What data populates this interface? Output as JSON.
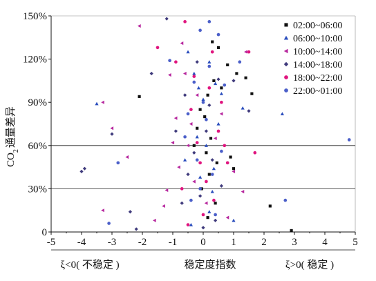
{
  "chart_data": {
    "type": "scatter",
    "title": "",
    "ylabel": "CO",
    "ylabel_sub": "2",
    "ylabel_rest": "通量差异",
    "xlabel_center": "稳定度指数",
    "xlabel_left": "ξ<0( 不稳定 )",
    "xlabel_right": "ξ>0( 稳定 )",
    "xlim": [
      -5,
      5
    ],
    "ylim": [
      0,
      150
    ],
    "x_ticks": [
      "-5",
      "-4",
      "-3",
      "-2",
      "-1",
      "0",
      "1",
      "2",
      "3",
      "4",
      "5"
    ],
    "y_ticks": [
      "0",
      "30%",
      "60%",
      "90%",
      "120%",
      "150%"
    ],
    "grid": "horizontal at 30% and 60%",
    "legend_position": "top-right",
    "series": [
      {
        "name": "02:00~06:00",
        "marker": "square",
        "color": "#111111",
        "points": [
          [
            -2.1,
            94
          ],
          [
            -0.3,
            60
          ],
          [
            0.3,
            132
          ],
          [
            0.5,
            128
          ],
          [
            0.6,
            100
          ],
          [
            0.8,
            116
          ],
          [
            0.9,
            52
          ],
          [
            1.0,
            44
          ],
          [
            1.1,
            110
          ],
          [
            1.4,
            107
          ],
          [
            1.6,
            96
          ],
          [
            2.2,
            18
          ],
          [
            2.9,
            1
          ],
          [
            -0.05,
            30
          ],
          [
            0.05,
            80
          ],
          [
            0.1,
            55
          ],
          [
            0.15,
            95
          ],
          [
            -0.1,
            85
          ],
          [
            0.2,
            40
          ],
          [
            0.25,
            65
          ],
          [
            0.4,
            20
          ],
          [
            0.35,
            105
          ],
          [
            -0.2,
            72
          ],
          [
            0.45,
            48
          ],
          [
            0.15,
            10
          ]
        ]
      },
      {
        "name": "06:00~10:00",
        "marker": "triangle",
        "color": "#2a4dbd",
        "points": [
          [
            -3.5,
            89
          ],
          [
            -0.5,
            125
          ],
          [
            -0.3,
            110
          ],
          [
            0.2,
            118
          ],
          [
            0.4,
            103
          ],
          [
            0.6,
            96
          ],
          [
            1.0,
            8
          ],
          [
            1.3,
            86
          ],
          [
            2.6,
            82
          ],
          [
            -0.4,
            5
          ],
          [
            0.1,
            60
          ],
          [
            -0.1,
            38
          ],
          [
            0.3,
            28
          ],
          [
            -0.2,
            66
          ],
          [
            0.0,
            92
          ],
          [
            0.5,
            75
          ],
          [
            -0.6,
            50
          ],
          [
            0.2,
            14
          ],
          [
            -0.15,
            100
          ],
          [
            0.35,
            44
          ]
        ]
      },
      {
        "name": "10:00~14:00",
        "marker": "triangle-left",
        "color": "#b7279e",
        "points": [
          [
            -3.3,
            90
          ],
          [
            -2.1,
            143
          ],
          [
            -1.1,
            109
          ],
          [
            -0.7,
            131
          ],
          [
            -0.9,
            79
          ],
          [
            -1.2,
            29
          ],
          [
            -3.0,
            72
          ],
          [
            -3.3,
            15
          ],
          [
            -2.5,
            52
          ],
          [
            -1.6,
            8
          ],
          [
            -0.5,
            60
          ],
          [
            -0.3,
            35
          ],
          [
            0.1,
            20
          ],
          [
            0.6,
            82
          ],
          [
            0.4,
            65
          ],
          [
            -0.2,
            95
          ],
          [
            -0.8,
            45
          ],
          [
            -0.6,
            110
          ],
          [
            1.4,
            125
          ],
          [
            1.0,
            42
          ],
          [
            1.3,
            28
          ],
          [
            0.8,
            10
          ],
          [
            -0.4,
            75
          ],
          [
            -1.0,
            62
          ],
          [
            -1.3,
            18
          ]
        ]
      },
      {
        "name": "14:00~18:00",
        "marker": "diamond",
        "color": "#3f3a7c",
        "points": [
          [
            -4.0,
            42
          ],
          [
            -3.9,
            44
          ],
          [
            -3.0,
            68
          ],
          [
            -2.4,
            14
          ],
          [
            -2.2,
            2
          ],
          [
            -1.7,
            110
          ],
          [
            -1.2,
            148
          ],
          [
            -0.9,
            70
          ],
          [
            -0.5,
            40
          ],
          [
            0.0,
            3
          ],
          [
            0.5,
            106
          ],
          [
            1.0,
            105
          ],
          [
            1.5,
            84
          ],
          [
            -0.3,
            55
          ],
          [
            0.2,
            88
          ],
          [
            -0.1,
            25
          ],
          [
            0.3,
            50
          ],
          [
            -0.6,
            95
          ],
          [
            0.6,
            32
          ],
          [
            -0.2,
            118
          ],
          [
            0.4,
            8
          ],
          [
            -0.7,
            20
          ],
          [
            0.1,
            70
          ]
        ]
      },
      {
        "name": "18:00~22:00",
        "marker": "circle",
        "color": "#e0157f",
        "points": [
          [
            -1.5,
            128
          ],
          [
            -0.9,
            118
          ],
          [
            -0.6,
            146
          ],
          [
            0.3,
            125
          ],
          [
            0.6,
            90
          ],
          [
            0.8,
            48
          ],
          [
            1.5,
            125
          ],
          [
            1.7,
            55
          ],
          [
            -0.2,
            62
          ],
          [
            0.1,
            35
          ],
          [
            -0.4,
            85
          ],
          [
            0.0,
            12
          ],
          [
            0.5,
            70
          ],
          [
            -0.7,
            30
          ],
          [
            0.2,
            100
          ],
          [
            -0.1,
            48
          ],
          [
            0.35,
            22
          ],
          [
            -0.3,
            108
          ],
          [
            0.7,
            60
          ],
          [
            -0.5,
            5
          ]
        ]
      },
      {
        "name": "22:00~01:00",
        "marker": "circle",
        "color": "#4b5fc9",
        "points": [
          [
            -3.1,
            6
          ],
          [
            -2.8,
            48
          ],
          [
            -1.1,
            119
          ],
          [
            -0.1,
            140
          ],
          [
            0.2,
            146
          ],
          [
            0.5,
            137
          ],
          [
            0.7,
            102
          ],
          [
            1.2,
            118
          ],
          [
            2.7,
            22
          ],
          [
            4.8,
            64
          ],
          [
            -0.2,
            50
          ],
          [
            0.1,
            78
          ],
          [
            -0.4,
            22
          ],
          [
            0.3,
            40
          ],
          [
            0.0,
            90
          ],
          [
            -0.6,
            66
          ],
          [
            0.4,
            12
          ],
          [
            -0.3,
            104
          ],
          [
            0.6,
            56
          ],
          [
            -0.1,
            30
          ],
          [
            0.2,
            115
          ],
          [
            -0.5,
            82
          ]
        ]
      }
    ]
  }
}
